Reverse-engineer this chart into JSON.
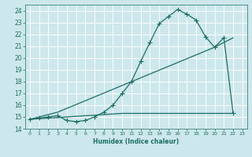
{
  "xlabel": "Humidex (Indice chaleur)",
  "bg_color": "#cce8ec",
  "grid_color": "#ffffff",
  "line_color": "#1a6e64",
  "xlim": [
    -0.5,
    23.5
  ],
  "ylim": [
    14,
    24.5
  ],
  "xticks": [
    0,
    1,
    2,
    3,
    4,
    5,
    6,
    7,
    8,
    9,
    10,
    11,
    12,
    13,
    14,
    15,
    16,
    17,
    18,
    19,
    20,
    21,
    22,
    23
  ],
  "yticks": [
    14,
    15,
    16,
    17,
    18,
    19,
    20,
    21,
    22,
    23,
    24
  ],
  "curve1_x": [
    0,
    1,
    2,
    3,
    4,
    5,
    6,
    7,
    8,
    9,
    10,
    11,
    12,
    13,
    14,
    15,
    16,
    17,
    18,
    19,
    20,
    21,
    22
  ],
  "curve1_y": [
    14.8,
    14.9,
    15.0,
    15.1,
    14.7,
    14.6,
    14.7,
    15.0,
    15.4,
    16.0,
    17.0,
    18.0,
    19.7,
    21.3,
    22.9,
    23.5,
    24.1,
    23.7,
    23.2,
    21.8,
    20.9,
    21.7,
    15.3
  ],
  "curve2_x": [
    0,
    10,
    22
  ],
  "curve2_y": [
    14.8,
    15.3,
    15.3
  ],
  "curve3_x": [
    0,
    3,
    20,
    22
  ],
  "curve3_y": [
    14.8,
    15.4,
    20.9,
    21.7
  ],
  "marker": "+",
  "markersize": 4,
  "linewidth": 0.9
}
